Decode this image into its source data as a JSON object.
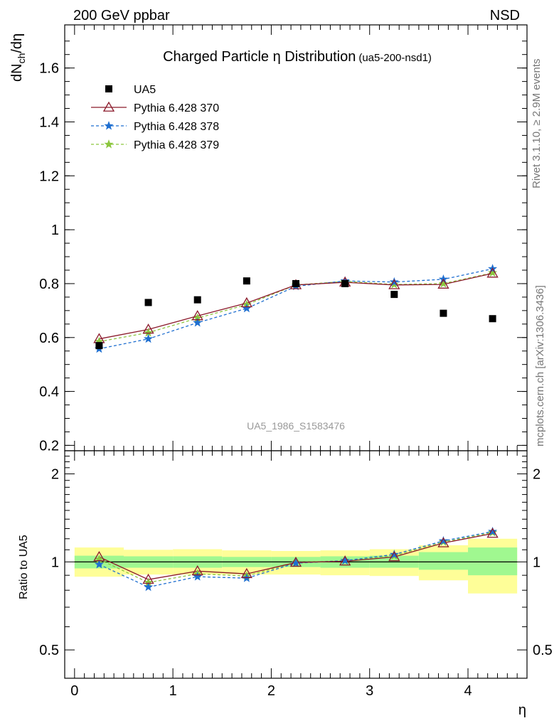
{
  "header": {
    "left": "200 GeV ppbar",
    "right": "NSD"
  },
  "side_labels": {
    "rivet": "Rivet 3.1.10, ≥ 2.9M events",
    "mcplots": "mcplots.cern.ch [arXiv:1306.3436]"
  },
  "chart_data": [
    {
      "type": "line",
      "title": "Charged Particle η Distribution",
      "subtitle": "(ua5-200-nsd1)",
      "ylabel_main": "dN",
      "ylabel_sub": "ch",
      "ylabel_tail": "/dη",
      "watermark": "UA5_1986_S1583476",
      "xlim": [
        -0.1,
        4.6
      ],
      "ylim": [
        0.18,
        1.76
      ],
      "yticks": [
        "0.2",
        "0.4",
        "0.6",
        "0.8",
        "1",
        "1.2",
        "1.4",
        "1.6"
      ],
      "ytick_values": [
        0.2,
        0.4,
        0.6,
        0.8,
        1.0,
        1.2,
        1.4,
        1.6
      ],
      "legend_position": "top-left",
      "x": [
        0.25,
        0.75,
        1.25,
        1.75,
        2.25,
        2.75,
        3.25,
        3.75,
        4.25
      ],
      "x_err": 0.25,
      "series": [
        {
          "name": "UA5",
          "style": "data-square",
          "color": "#000000",
          "values": [
            0.57,
            0.73,
            0.74,
            0.81,
            0.8,
            0.8,
            0.76,
            0.69,
            0.67
          ]
        },
        {
          "name": "Pythia 6.428 370",
          "style": "triangle-solid",
          "color": "#8b1a2b",
          "values": [
            0.595,
            0.63,
            0.68,
            0.728,
            0.795,
            0.805,
            0.795,
            0.797,
            0.838
          ]
        },
        {
          "name": "Pythia 6.428 378",
          "style": "star-dashed",
          "color": "#1f6fd0",
          "values": [
            0.558,
            0.595,
            0.655,
            0.708,
            0.79,
            0.81,
            0.806,
            0.816,
            0.855
          ]
        },
        {
          "name": "Pythia 6.428 379",
          "style": "star-dashed",
          "color": "#8cc63f",
          "values": [
            0.585,
            0.618,
            0.672,
            0.722,
            0.795,
            0.808,
            0.797,
            0.8,
            0.84
          ]
        }
      ]
    },
    {
      "type": "line",
      "ylabel": "Ratio to UA5",
      "xlabel": "η",
      "xlim": [
        -0.1,
        4.6
      ],
      "ylim": [
        0.4,
        2.4
      ],
      "log_y": true,
      "xticks": [
        "0",
        "1",
        "2",
        "3",
        "4"
      ],
      "xtick_values": [
        0,
        1,
        2,
        3,
        4
      ],
      "yticks": [
        "0.5",
        "1",
        "2"
      ],
      "ytick_values": [
        0.5,
        1,
        2
      ],
      "bins": [
        [
          0.0,
          0.5
        ],
        [
          0.5,
          1.0
        ],
        [
          1.0,
          1.5
        ],
        [
          1.5,
          2.0
        ],
        [
          2.0,
          2.5
        ],
        [
          2.5,
          3.0
        ],
        [
          3.0,
          3.5
        ],
        [
          3.5,
          4.0
        ],
        [
          4.0,
          4.5
        ]
      ],
      "band_stat": [
        [
          0.95,
          1.05
        ],
        [
          0.955,
          1.045
        ],
        [
          0.955,
          1.045
        ],
        [
          0.96,
          1.04
        ],
        [
          0.96,
          1.04
        ],
        [
          0.955,
          1.045
        ],
        [
          0.955,
          1.05
        ],
        [
          0.94,
          1.08
        ],
        [
          0.9,
          1.12
        ]
      ],
      "band_total": [
        [
          0.89,
          1.12
        ],
        [
          0.905,
          1.1
        ],
        [
          0.905,
          1.105
        ],
        [
          0.905,
          1.095
        ],
        [
          0.905,
          1.09
        ],
        [
          0.9,
          1.095
        ],
        [
          0.895,
          1.105
        ],
        [
          0.865,
          1.14
        ],
        [
          0.78,
          1.2
        ]
      ],
      "series": [
        {
          "name": "Pythia 6.428 370",
          "color": "#8b1a2b",
          "values": [
            1.04,
            0.87,
            0.93,
            0.91,
            0.995,
            1.005,
            1.04,
            1.16,
            1.25
          ]
        },
        {
          "name": "Pythia 6.428 378",
          "color": "#1f6fd0",
          "values": [
            0.98,
            0.82,
            0.89,
            0.88,
            0.99,
            1.01,
            1.06,
            1.18,
            1.27
          ]
        },
        {
          "name": "Pythia 6.428 379",
          "color": "#8cc63f",
          "values": [
            1.02,
            0.85,
            0.91,
            0.895,
            0.995,
            1.01,
            1.05,
            1.17,
            1.26
          ]
        }
      ]
    }
  ],
  "colors": {
    "band_stat": "#a0f890",
    "band_total": "#fefe98"
  }
}
